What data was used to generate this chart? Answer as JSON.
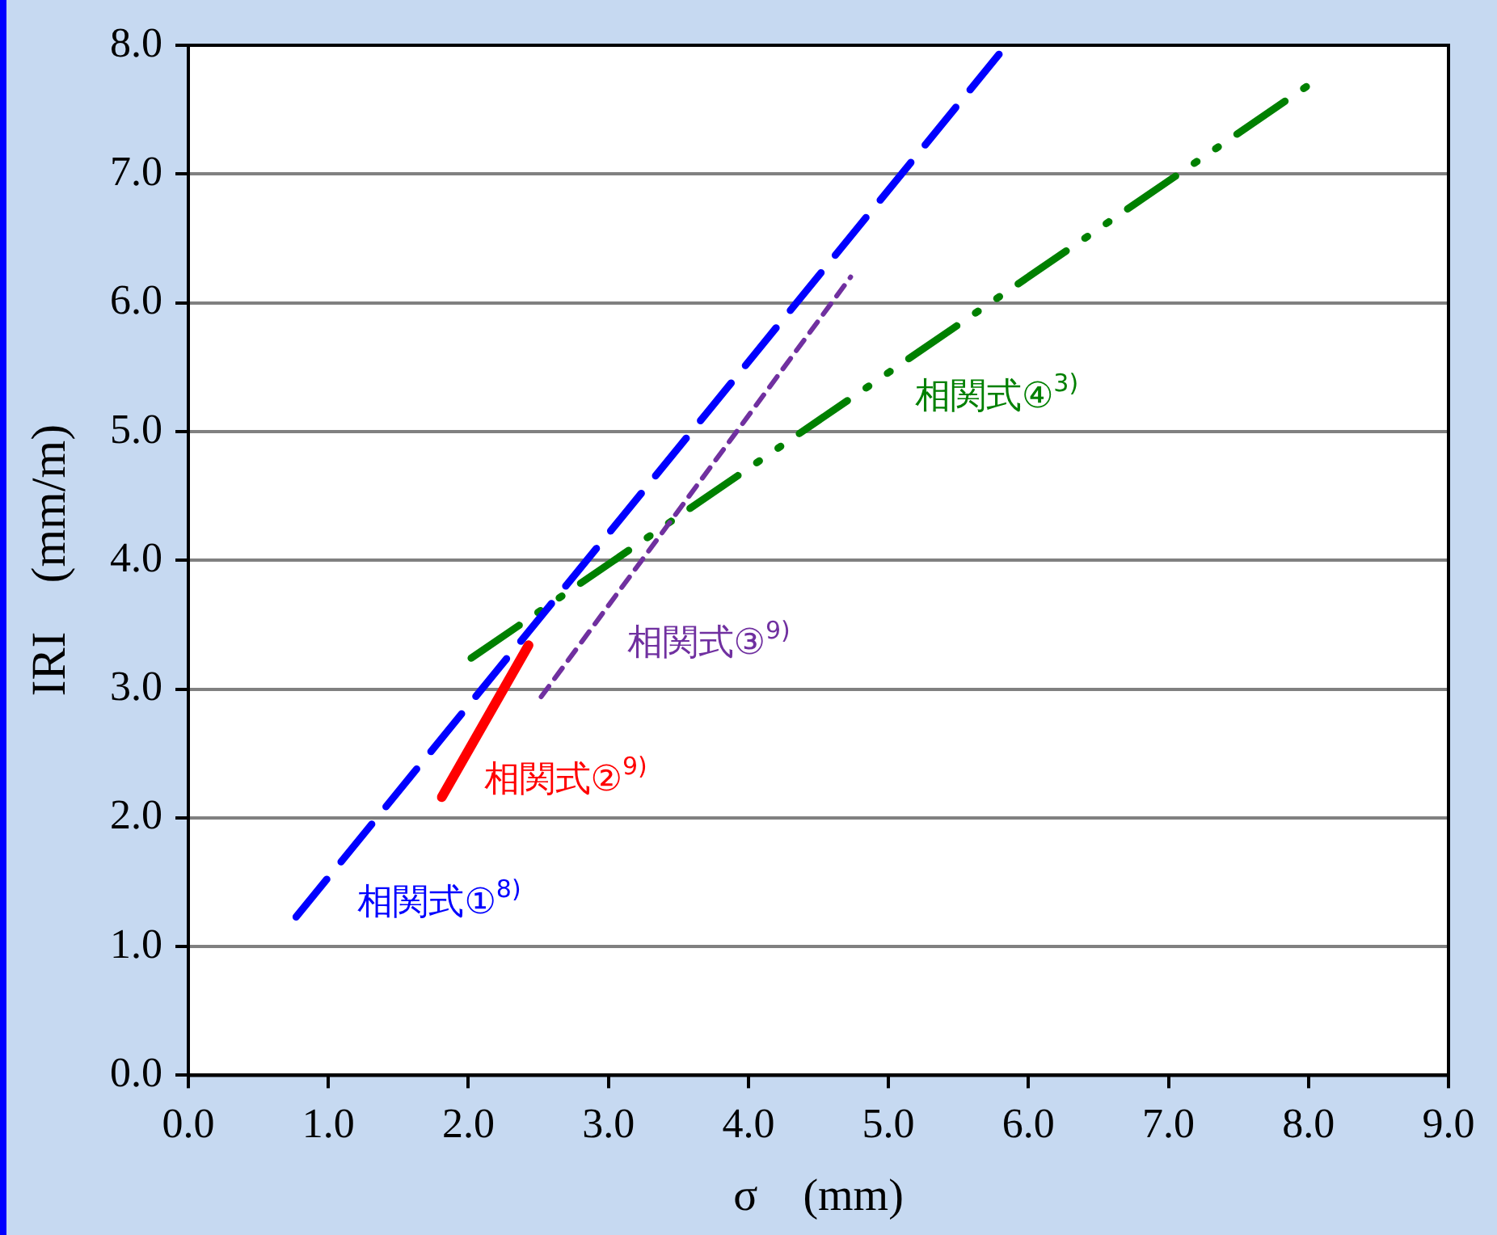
{
  "chart_data": {
    "type": "line",
    "xlabel": "σ　(mm)",
    "ylabel": "IRI　(mm/m)",
    "xlim": [
      0,
      9
    ],
    "ylim": [
      0,
      8
    ],
    "xticks": [
      {
        "value": 0,
        "label": "0.0"
      },
      {
        "value": 1,
        "label": "1.0"
      },
      {
        "value": 2,
        "label": "2.0"
      },
      {
        "value": 3,
        "label": "3.0"
      },
      {
        "value": 4,
        "label": "4.0"
      },
      {
        "value": 5,
        "label": "5.0"
      },
      {
        "value": 6,
        "label": "6.0"
      },
      {
        "value": 7,
        "label": "7.0"
      },
      {
        "value": 8,
        "label": "8.0"
      },
      {
        "value": 9,
        "label": "9.0"
      }
    ],
    "yticks": [
      {
        "value": 0,
        "label": "0.0"
      },
      {
        "value": 1,
        "label": "1.0"
      },
      {
        "value": 2,
        "label": "2.0"
      },
      {
        "value": 3,
        "label": "3.0"
      },
      {
        "value": 4,
        "label": "4.0"
      },
      {
        "value": 5,
        "label": "5.0"
      },
      {
        "value": 6,
        "label": "6.0"
      },
      {
        "value": 7,
        "label": "7.0"
      },
      {
        "value": 8,
        "label": "8.0"
      }
    ],
    "grid": "y",
    "legend": false,
    "marker": "none",
    "series": [
      {
        "name": "相関式①$^{8)}$",
        "color": "#0000ff",
        "line_style": "dashed",
        "x": [
          0.77,
          5.79
        ],
        "values": [
          1.23,
          7.93
        ]
      },
      {
        "name": "相関式②$^{9)}$",
        "color": "#ff0000",
        "line_style": "solid",
        "x": [
          1.81,
          2.43
        ],
        "values": [
          2.16,
          3.34
        ]
      },
      {
        "name": "相関式③$^{9)}$",
        "color": "#7030a0",
        "line_style": "dotted",
        "x": [
          2.52,
          4.73
        ],
        "values": [
          2.94,
          6.2
        ]
      },
      {
        "name": "相関式④$^{3)}$",
        "color": "#008000",
        "line_style": "dashdotdot",
        "x": [
          2.02,
          8.0
        ],
        "values": [
          3.24,
          7.69
        ]
      }
    ]
  }
}
